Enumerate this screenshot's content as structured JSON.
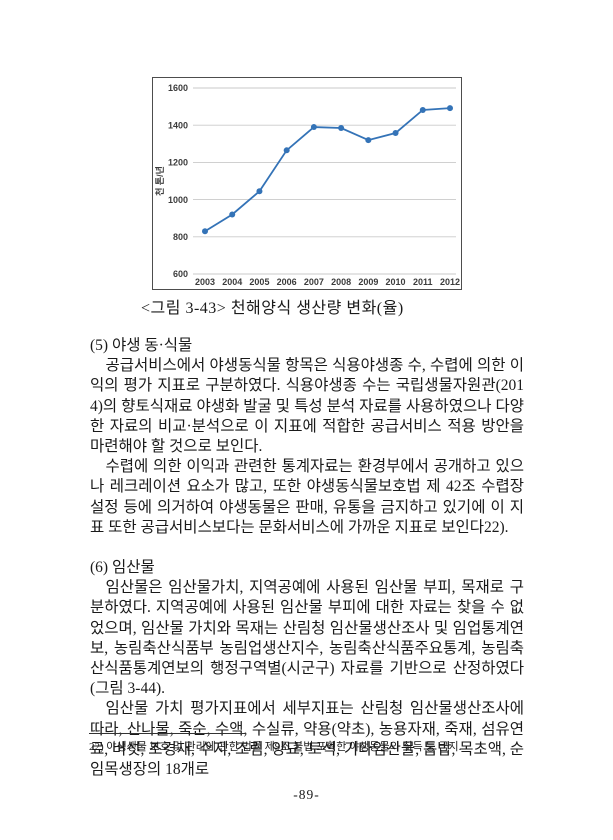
{
  "page": {
    "number": "-89-"
  },
  "figure": {
    "caption": "<그림 3-43> 천해양식 생산량 변화(율)"
  },
  "chart_data": {
    "type": "line",
    "title": "",
    "xlabel": "",
    "ylabel": "천 톤/년",
    "categories": [
      "2003",
      "2004",
      "2005",
      "2006",
      "2007",
      "2008",
      "2009",
      "2010",
      "2011",
      "2012"
    ],
    "values": [
      830,
      920,
      1045,
      1265,
      1390,
      1385,
      1320,
      1358,
      1482,
      1492
    ],
    "ylim": [
      600,
      1600
    ],
    "ytick_step": 200,
    "grid": true,
    "legend": "none",
    "line_color": "#3473b7",
    "gridline_color": "#c9c9c9"
  },
  "sections": [
    {
      "heading": "(5) 야생 동·식물",
      "paragraphs": [
        "공급서비스에서 야생동식물 항목은 식용야생종 수, 수렵에 의한 이익의 평가 지표로 구분하였다. 식용야생종 수는 국립생물자원관(2014)의 향토식재료 야생화 발굴 및 특성 분석 자료를 사용하였으나 다양한 자료의 비교·분석으로 이 지표에 적합한 공급서비스 적용 방안을 마련해야 할 것으로 보인다.",
        "수렵에 의한 이익과 관련한 통계자료는 환경부에서 공개하고 있으나 레크레이션 요소가 많고, 또한 야생동식물보호법 제 42조 수렵장 설정 등에 의거하여 야생동물은 판매, 유통을 금지하고 있기에 이 지표 또한 공급서비스보다는 문화서비스에 가까운 지표로 보인다22)."
      ]
    },
    {
      "heading": "(6) 임산물",
      "paragraphs": [
        "임산물은 임산물가치, 지역공예에 사용된 임산물 부피, 목재로 구분하였다. 지역공예에 사용된 임산물 부피에 대한 자료는 찾을 수 없었으며, 임산물 가치와 목재는 산림청 임산물생산조사 및 임업통계연보, 농림축산식품부 농림업생산지수, 농림축산식품주요통계, 농림축산식품통계연보의 행정구역별(시군구) 자료를 기반으로 산정하였다(그림 3-44).",
        "임산물 가치 평가지표에서 세부지표는 산림청 임산물생산조사에 따라, 산나물, 죽순, 수액, 수실류, 약용(약초), 농용자재, 죽재, 섬유연료, 버섯, 조경재, 수지, 조림, 양묘, 토석, 기타임산물, 톱밥, 목초액, 순임목생장의 18개로"
      ]
    }
  ],
  "footnote": {
    "text": "22) 야생생물 보호 및 관리에 관한 법률 제9조 불법 포획한 야생동물의 취득 등 금지."
  }
}
